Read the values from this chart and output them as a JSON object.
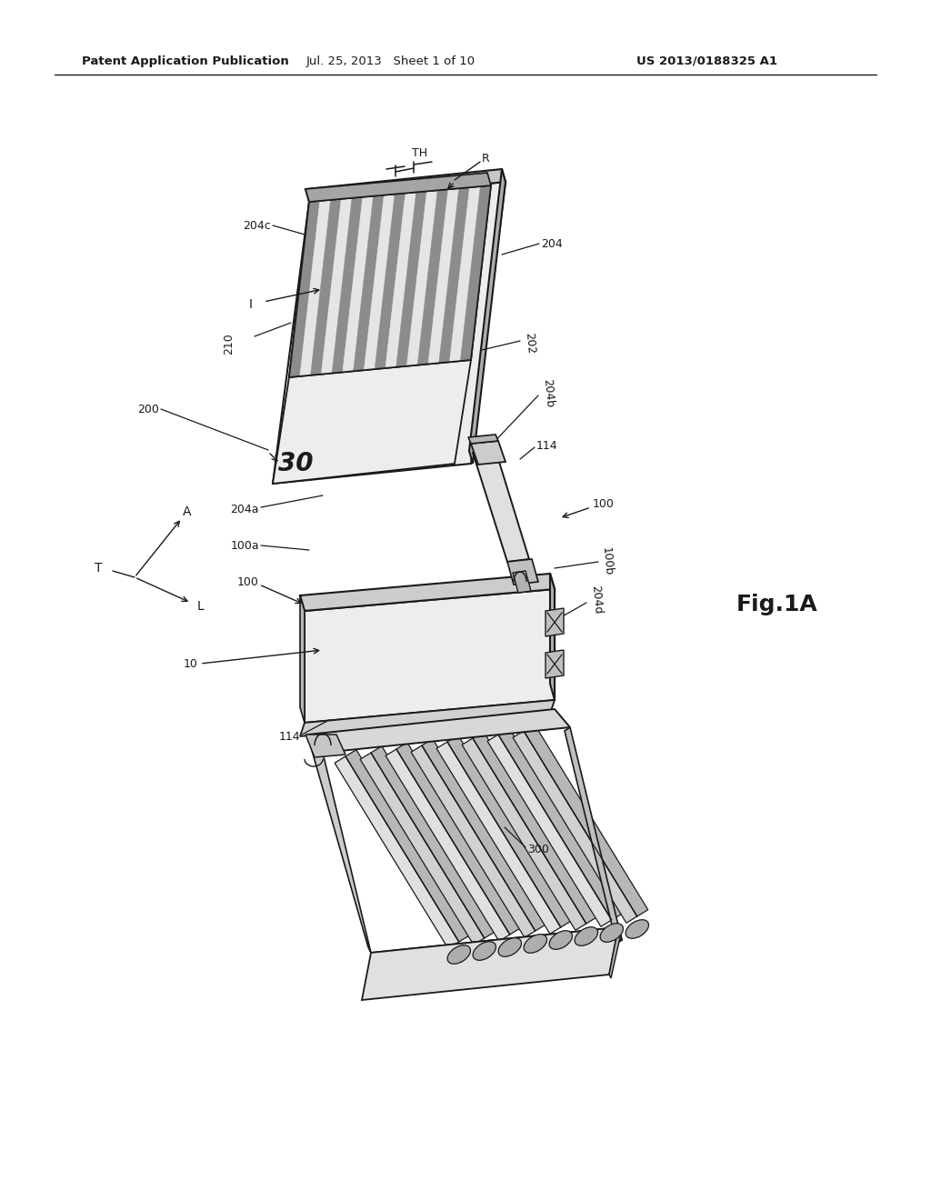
{
  "bg_color": "#ffffff",
  "line_color": "#1a1a1a",
  "header_left": "Patent Application Publication",
  "header_mid": "Jul. 25, 2013   Sheet 1 of 10",
  "header_right": "US 2013/0188325 A1",
  "fig_label": "Fig.1A",
  "gray_face": "#f0f0f0",
  "gray_top": "#d8d8d8",
  "gray_right": "#c0c0c0",
  "gray_dark": "#aaaaaa",
  "gray_ridge": "#888888"
}
